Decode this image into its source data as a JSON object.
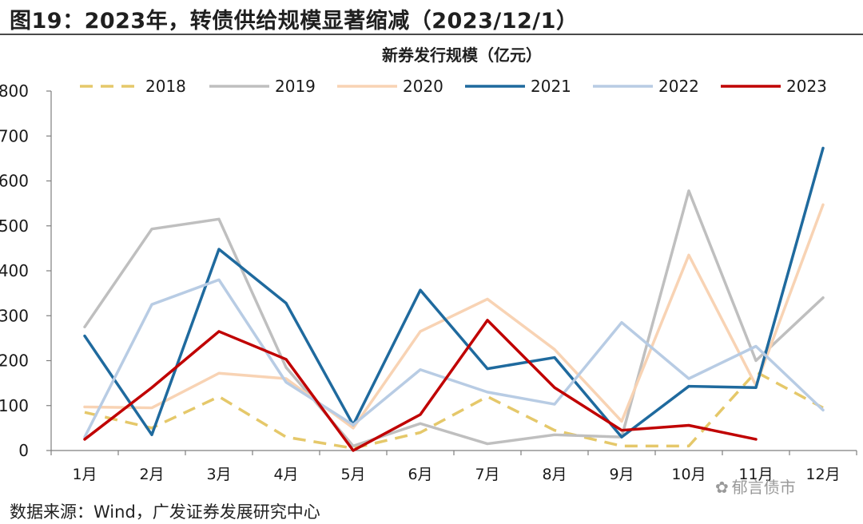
{
  "figure": {
    "title": "图19：2023年，转债供给规模显著缩减（2023/12/1）",
    "source": "数据来源：Wind，广发证券发展研究中心",
    "watermark": "郁言债市"
  },
  "colors": {
    "2018": "#e5c86a",
    "2019": "#bfbfbf",
    "2020": "#f8d3b4",
    "2021": "#1f6a9e",
    "2022": "#b8cce4",
    "2023": "#c00000"
  },
  "chart_data": {
    "type": "line",
    "title": "新券发行规模（亿元）",
    "categories": [
      "1月",
      "2月",
      "3月",
      "4月",
      "5月",
      "6月",
      "7月",
      "8月",
      "9月",
      "10月",
      "11月",
      "12月"
    ],
    "ylim": [
      0,
      800
    ],
    "yticks": [
      0,
      100,
      200,
      300,
      400,
      500,
      600,
      700,
      800
    ],
    "grid": false,
    "legend_position": "top",
    "series": [
      {
        "name": "2018",
        "dashed": true,
        "values": [
          85,
          50,
          120,
          30,
          5,
          40,
          120,
          45,
          10,
          10,
          175,
          95
        ]
      },
      {
        "name": "2019",
        "dashed": false,
        "values": [
          275,
          493,
          515,
          185,
          10,
          60,
          15,
          35,
          30,
          578,
          200,
          340
        ]
      },
      {
        "name": "2020",
        "dashed": false,
        "values": [
          97,
          95,
          172,
          160,
          50,
          265,
          337,
          225,
          65,
          435,
          145,
          547
        ]
      },
      {
        "name": "2021",
        "dashed": false,
        "values": [
          255,
          35,
          448,
          328,
          57,
          357,
          182,
          207,
          30,
          143,
          140,
          673
        ]
      },
      {
        "name": "2022",
        "dashed": false,
        "values": [
          30,
          325,
          380,
          152,
          57,
          180,
          130,
          103,
          285,
          160,
          232,
          90
        ]
      },
      {
        "name": "2023",
        "dashed": false,
        "values": [
          25,
          140,
          265,
          203,
          0,
          80,
          290,
          140,
          45,
          56,
          25,
          null
        ]
      }
    ]
  }
}
